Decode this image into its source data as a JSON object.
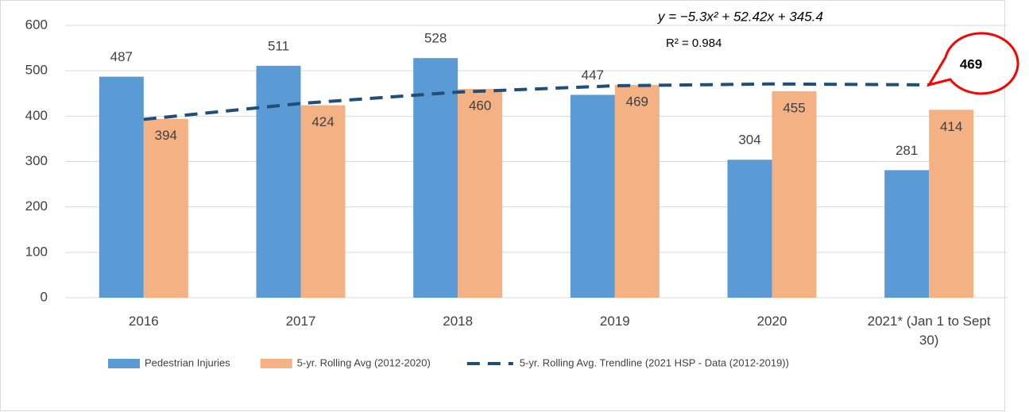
{
  "chart_data": {
    "type": "bar",
    "categories": [
      "2016",
      "2017",
      "2018",
      "2019",
      "2020",
      "2021* (Jan 1 to Sept 30)"
    ],
    "series": [
      {
        "name": "Pedestrian Injuries",
        "color": "#5b9bd5",
        "values": [
          487,
          511,
          528,
          447,
          304,
          281
        ]
      },
      {
        "name": "5-yr. Rolling Avg (2012-2020)",
        "color": "#f4b183",
        "values": [
          394,
          424,
          460,
          469,
          455,
          414
        ]
      },
      {
        "name": "5-yr. Rolling Avg. Trendline (2021 HSP - Data (2012-2019))",
        "type": "line",
        "color": "#1f4e79",
        "values": [
          393,
          428,
          453,
          467,
          471,
          469
        ]
      }
    ],
    "annotations": {
      "equation": "y = −5.3x² + 52.42x + 345.4",
      "r_squared": "R² = 0.984",
      "callout": "469"
    },
    "ylim": [
      0,
      600
    ],
    "yticks": [
      0,
      100,
      200,
      300,
      400,
      500,
      600
    ],
    "grid": true
  }
}
